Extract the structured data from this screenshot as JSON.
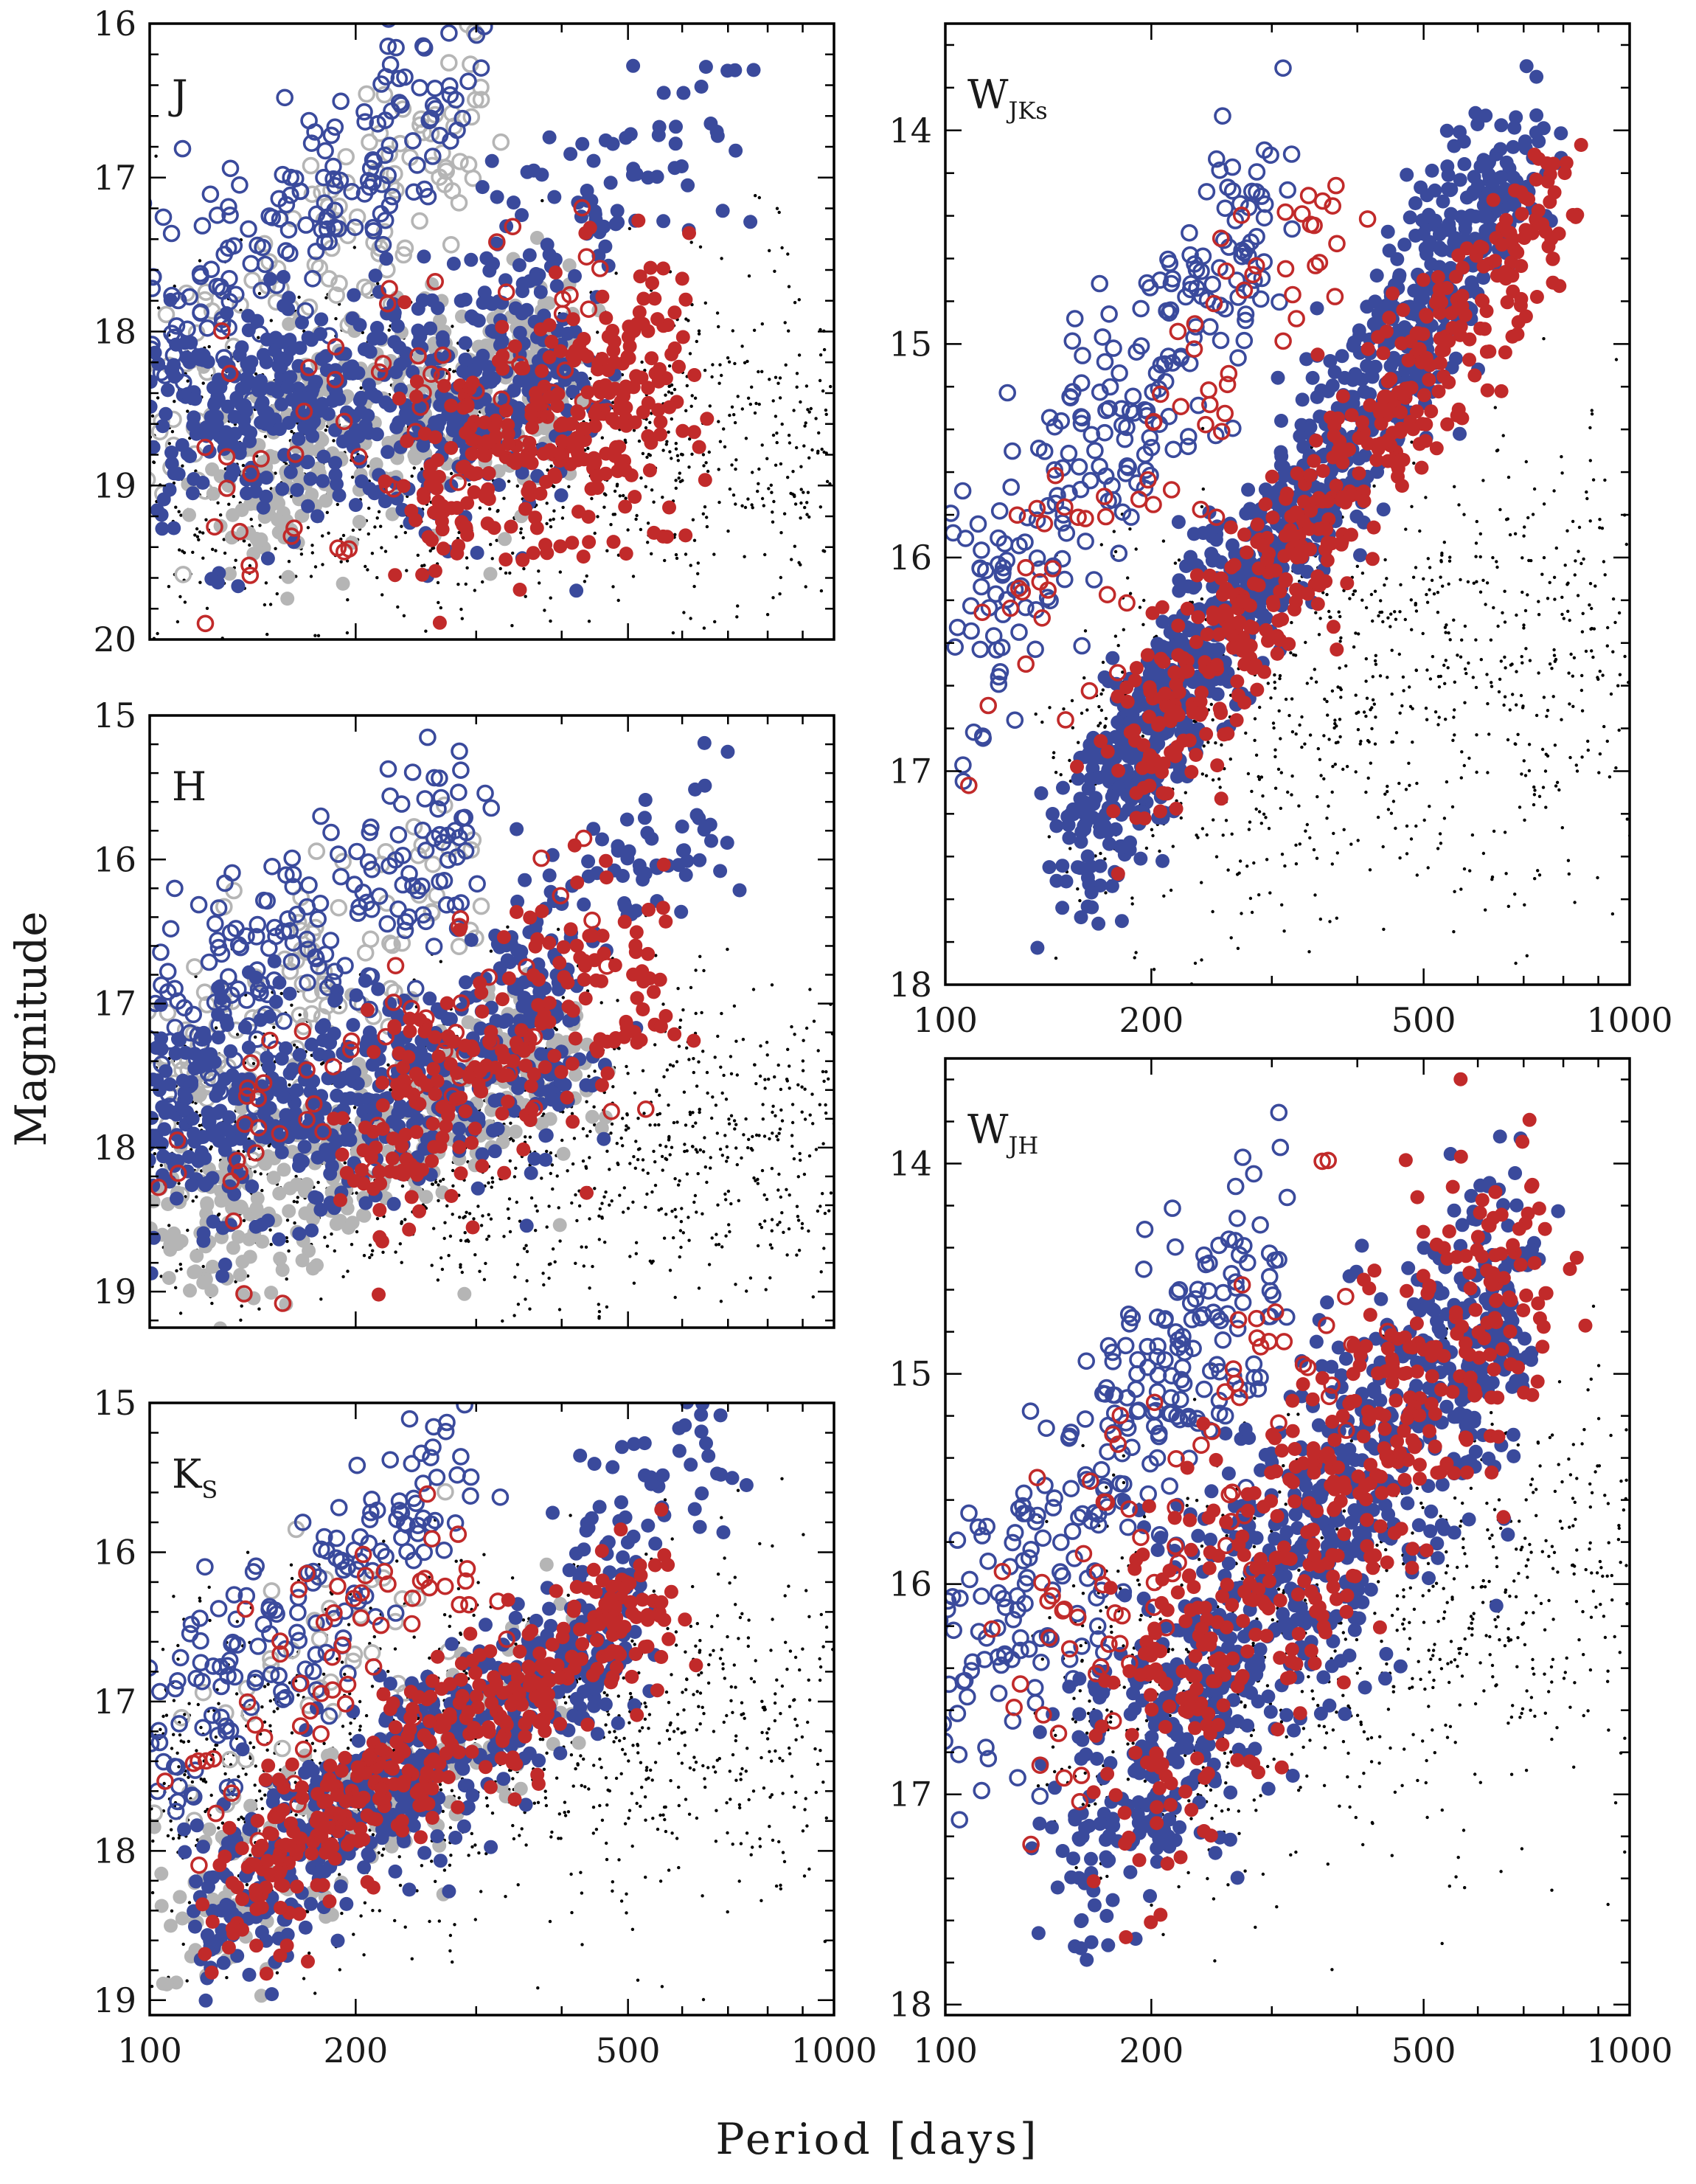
{
  "figure": {
    "ylabel": "Magnitude",
    "xlabel": "Period [days]"
  },
  "colors": {
    "blue": "#3a4a9c",
    "red": "#c12a2a",
    "gray": "#b5b5b5",
    "black": "#000000"
  },
  "chart_data": [
    {
      "id": "J",
      "type": "scatter",
      "panel_label": "J",
      "label_sub": "",
      "xscale": "log",
      "xlim": [
        100,
        1000
      ],
      "ylim": [
        20,
        16
      ],
      "y_inverted": true,
      "y_ticks": [
        16,
        17,
        18,
        19,
        20
      ],
      "x_ticks": [
        100,
        200,
        500,
        1000
      ],
      "show_x_ticks": false,
      "sequences": [
        {
          "color": "blue",
          "style": "open",
          "p": [
            100,
            290
          ],
          "m": [
            17.8,
            16.4
          ],
          "sigma": 0.35,
          "n": 170
        },
        {
          "color": "blue",
          "style": "filled",
          "p": [
            100,
            420
          ],
          "m": [
            18.6,
            18.3
          ],
          "sigma": 0.4,
          "n": 520
        },
        {
          "color": "blue",
          "style": "filled",
          "p": [
            320,
            700
          ],
          "m": [
            17.6,
            16.6
          ],
          "sigma": 0.35,
          "n": 80
        },
        {
          "color": "gray",
          "style": "filled",
          "p": [
            130,
            430
          ],
          "m": [
            19.0,
            18.1
          ],
          "sigma": 0.35,
          "n": 360
        },
        {
          "color": "gray",
          "style": "open",
          "p": [
            100,
            300
          ],
          "m": [
            18.8,
            16.6
          ],
          "sigma": 0.4,
          "n": 120
        },
        {
          "color": "red",
          "style": "filled",
          "p": [
            250,
            600
          ],
          "m": [
            19.0,
            18.3
          ],
          "sigma": 0.4,
          "n": 300
        },
        {
          "color": "red",
          "style": "open",
          "p": [
            120,
            500
          ],
          "m": [
            19.3,
            17.6
          ],
          "sigma": 0.5,
          "n": 60
        },
        {
          "color": "black",
          "style": "dot",
          "p": [
            100,
            1000
          ],
          "m": [
            18.9,
            18.7
          ],
          "sigma": 0.55,
          "n": 1100
        }
      ]
    },
    {
      "id": "H",
      "type": "scatter",
      "panel_label": "H",
      "label_sub": "",
      "xscale": "log",
      "xlim": [
        100,
        1000
      ],
      "ylim": [
        19.25,
        15
      ],
      "y_inverted": true,
      "y_ticks": [
        15,
        16,
        17,
        18,
        19
      ],
      "x_ticks": [
        100,
        200,
        500,
        1000
      ],
      "show_x_ticks": false,
      "sequences": [
        {
          "color": "blue",
          "style": "open",
          "p": [
            100,
            290
          ],
          "m": [
            17.2,
            15.7
          ],
          "sigma": 0.35,
          "n": 170
        },
        {
          "color": "blue",
          "style": "filled",
          "p": [
            100,
            420
          ],
          "m": [
            17.9,
            17.3
          ],
          "sigma": 0.4,
          "n": 520
        },
        {
          "color": "blue",
          "style": "filled",
          "p": [
            320,
            700
          ],
          "m": [
            16.8,
            15.7
          ],
          "sigma": 0.35,
          "n": 80
        },
        {
          "color": "gray",
          "style": "filled",
          "p": [
            110,
            420
          ],
          "m": [
            18.6,
            17.4
          ],
          "sigma": 0.35,
          "n": 360
        },
        {
          "color": "gray",
          "style": "open",
          "p": [
            100,
            300
          ],
          "m": [
            17.7,
            15.9
          ],
          "sigma": 0.4,
          "n": 110
        },
        {
          "color": "red",
          "style": "filled",
          "p": [
            200,
            550
          ],
          "m": [
            18.0,
            16.7
          ],
          "sigma": 0.45,
          "n": 220
        },
        {
          "color": "red",
          "style": "open",
          "p": [
            110,
            450
          ],
          "m": [
            18.3,
            16.7
          ],
          "sigma": 0.5,
          "n": 60
        },
        {
          "color": "black",
          "style": "dot",
          "p": [
            100,
            1000
          ],
          "m": [
            18.1,
            17.9
          ],
          "sigma": 0.55,
          "n": 1100
        }
      ]
    },
    {
      "id": "Ks",
      "type": "scatter",
      "panel_label": "K",
      "label_sub": "S",
      "xscale": "log",
      "xlim": [
        100,
        1000
      ],
      "ylim": [
        19.1,
        15
      ],
      "y_inverted": true,
      "y_ticks": [
        15,
        16,
        17,
        18,
        19
      ],
      "x_ticks": [
        100,
        200,
        500,
        1000
      ],
      "show_x_ticks": true,
      "sequences": [
        {
          "color": "blue",
          "style": "open",
          "p": [
            100,
            290
          ],
          "m": [
            17.4,
            15.5
          ],
          "sigma": 0.35,
          "n": 160
        },
        {
          "color": "blue",
          "style": "filled",
          "p": [
            120,
            500
          ],
          "m": [
            18.4,
            16.5
          ],
          "sigma": 0.3,
          "n": 520
        },
        {
          "color": "blue",
          "style": "filled",
          "p": [
            420,
            700
          ],
          "m": [
            16.0,
            15.3
          ],
          "sigma": 0.3,
          "n": 60
        },
        {
          "color": "gray",
          "style": "filled",
          "p": [
            100,
            420
          ],
          "m": [
            18.7,
            16.8
          ],
          "sigma": 0.3,
          "n": 200
        },
        {
          "color": "gray",
          "style": "open",
          "p": [
            110,
            260
          ],
          "m": [
            17.3,
            16.2
          ],
          "sigma": 0.4,
          "n": 40
        },
        {
          "color": "red",
          "style": "filled",
          "p": [
            130,
            550
          ],
          "m": [
            18.3,
            16.3
          ],
          "sigma": 0.25,
          "n": 380
        },
        {
          "color": "red",
          "style": "open",
          "p": [
            110,
            300
          ],
          "m": [
            17.6,
            16.0
          ],
          "sigma": 0.4,
          "n": 60
        },
        {
          "color": "black",
          "style": "dot",
          "p": [
            100,
            1000
          ],
          "m": [
            17.6,
            17.1
          ],
          "sigma": 0.6,
          "n": 1100
        }
      ]
    },
    {
      "id": "WJKs",
      "type": "scatter",
      "panel_label": "W",
      "label_sub": "JKs",
      "xscale": "log",
      "xlim": [
        100,
        1000
      ],
      "ylim": [
        18,
        13.5
      ],
      "y_inverted": true,
      "y_ticks": [
        14,
        15,
        16,
        17,
        18
      ],
      "x_ticks": [
        100,
        200,
        500,
        1000
      ],
      "show_x_ticks": true,
      "sequences": [
        {
          "color": "blue",
          "style": "open",
          "p": [
            100,
            300
          ],
          "m": [
            16.6,
            14.3
          ],
          "sigma": 0.3,
          "n": 230
        },
        {
          "color": "blue",
          "style": "filled",
          "p": [
            150,
            700
          ],
          "m": [
            17.4,
            14.1
          ],
          "sigma": 0.22,
          "n": 900
        },
        {
          "color": "red",
          "style": "filled",
          "p": [
            180,
            800
          ],
          "m": [
            17.0,
            14.3
          ],
          "sigma": 0.2,
          "n": 450
        },
        {
          "color": "red",
          "style": "open",
          "p": [
            120,
            400
          ],
          "m": [
            16.4,
            14.2
          ],
          "sigma": 0.3,
          "n": 70
        },
        {
          "color": "black",
          "style": "dot",
          "p": [
            150,
            1000
          ],
          "m": [
            16.9,
            16.4
          ],
          "sigma": 0.5,
          "n": 900
        }
      ]
    },
    {
      "id": "WJH",
      "type": "scatter",
      "panel_label": "W",
      "label_sub": "JH",
      "xscale": "log",
      "xlim": [
        100,
        1000
      ],
      "ylim": [
        18.05,
        13.5
      ],
      "y_inverted": true,
      "y_ticks": [
        14,
        15,
        16,
        17,
        18
      ],
      "x_ticks": [
        100,
        200,
        500,
        1000
      ],
      "show_x_ticks": true,
      "sequences": [
        {
          "color": "blue",
          "style": "open",
          "p": [
            100,
            300
          ],
          "m": [
            16.4,
            14.4
          ],
          "sigma": 0.35,
          "n": 260
        },
        {
          "color": "blue",
          "style": "filled",
          "p": [
            150,
            700
          ],
          "m": [
            17.2,
            14.6
          ],
          "sigma": 0.4,
          "n": 800
        },
        {
          "color": "red",
          "style": "filled",
          "p": [
            180,
            750
          ],
          "m": [
            16.8,
            14.4
          ],
          "sigma": 0.38,
          "n": 450
        },
        {
          "color": "red",
          "style": "open",
          "p": [
            120,
            400
          ],
          "m": [
            16.9,
            14.4
          ],
          "sigma": 0.4,
          "n": 80
        },
        {
          "color": "black",
          "style": "dot",
          "p": [
            150,
            1000
          ],
          "m": [
            16.6,
            15.9
          ],
          "sigma": 0.5,
          "n": 900
        }
      ]
    }
  ]
}
